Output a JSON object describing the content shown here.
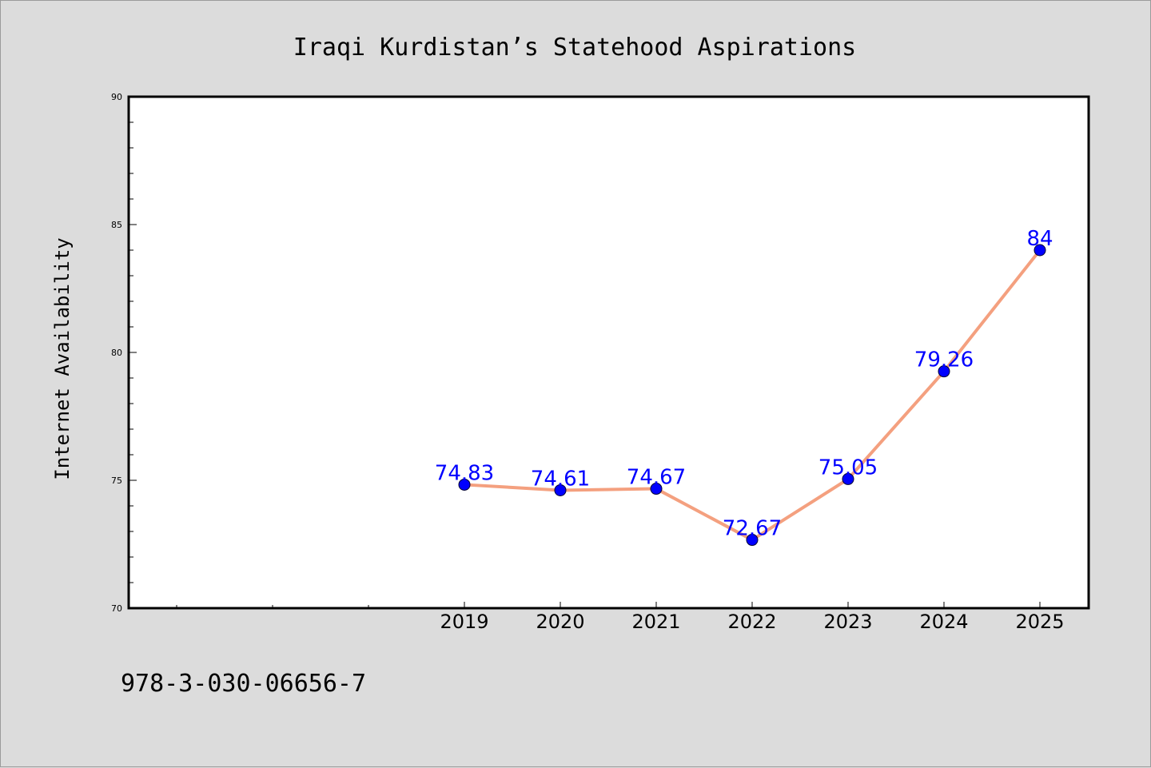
{
  "chart_data": {
    "type": "line",
    "title": "Iraqi Kurdistan’s Statehood Aspirations",
    "xlabel": "",
    "ylabel": "Internet Availability",
    "categories": [
      "2019",
      "2020",
      "2021",
      "2022",
      "2023",
      "2024",
      "2025"
    ],
    "series": [
      {
        "values": [
          74.83,
          74.61,
          74.67,
          72.67,
          75.05,
          79.26,
          84
        ],
        "labels": [
          "74.83",
          "74.61",
          "74.67",
          "72.67",
          "75.05",
          "79.26",
          "84"
        ]
      }
    ],
    "ylim": [
      70,
      90
    ],
    "yticks": [
      "70",
      "75",
      "80",
      "85",
      "90"
    ],
    "grid": false,
    "line_color": "#f4a07f",
    "marker_color": "#0000ff",
    "label_color": "#0000ff"
  },
  "footer": {
    "code": "978-3-030-06656-7"
  }
}
